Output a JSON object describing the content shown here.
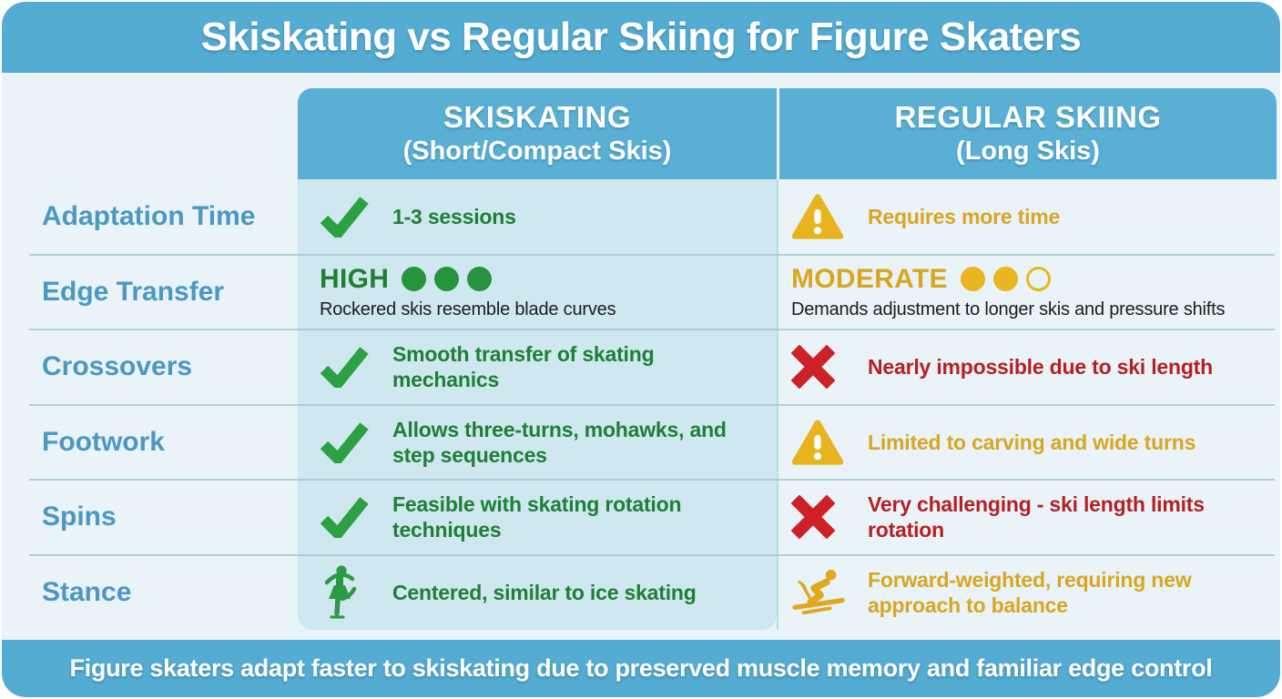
{
  "title": "Skiskating vs Regular Skiing for Figure Skaters",
  "columns": {
    "skiskating": {
      "title": "SKISKATING",
      "subtitle": "(Short/Compact Skis)"
    },
    "regular": {
      "title": "REGULAR SKIING",
      "subtitle": "(Long Skis)"
    }
  },
  "rows": [
    {
      "label": "Adaptation Time",
      "skiskating": {
        "icon": "check-icon",
        "text": "1-3 sessions"
      },
      "regular": {
        "icon": "warning-icon",
        "text": "Requires more time"
      }
    },
    {
      "label": "Edge Transfer",
      "skiskating": {
        "rating": "HIGH",
        "dots_filled": 3,
        "dots_total": 3,
        "text": "Rockered skis resemble blade curves"
      },
      "regular": {
        "rating": "MODERATE",
        "dots_filled": 2,
        "dots_total": 3,
        "text": "Demands adjustment to longer skis and pressure shifts"
      }
    },
    {
      "label": "Crossovers",
      "skiskating": {
        "icon": "check-icon",
        "text": "Smooth transfer of skating mechanics"
      },
      "regular": {
        "icon": "cross-icon",
        "text": "Nearly impossible due to ski length"
      }
    },
    {
      "label": "Footwork",
      "skiskating": {
        "icon": "check-icon",
        "text": "Allows three-turns, mohawks, and step sequences"
      },
      "regular": {
        "icon": "warning-icon",
        "text": "Limited to carving and wide turns"
      }
    },
    {
      "label": "Spins",
      "skiskating": {
        "icon": "check-icon",
        "text": "Feasible with skating rotation techniques"
      },
      "regular": {
        "icon": "cross-icon",
        "text": "Very challenging - ski length limits rotation"
      }
    },
    {
      "label": "Stance",
      "skiskating": {
        "icon": "figure-skater-icon",
        "text": "Centered, similar to ice skating"
      },
      "regular": {
        "icon": "skier-icon",
        "text": "Forward-weighted, requiring new approach to balance"
      }
    }
  ],
  "footer": "Figure skaters adapt faster to skiskating due to preserved muscle memory and familiar edge control",
  "colors": {
    "header_blue": "#55acd2",
    "column_header_blue": "#5aafd4",
    "skiskating_highlight_bg": "#cfe8f0",
    "page_bg": "#e9f3f8",
    "label_blue": "#4a98c3",
    "green_icon": "#2da044",
    "green_text": "#1e7f35",
    "amber_icon": "#e8b61e",
    "amber_text": "#d9a620",
    "red_icon": "#cd2127",
    "red_text": "#b52025",
    "dark_text": "#1c1c1c"
  }
}
